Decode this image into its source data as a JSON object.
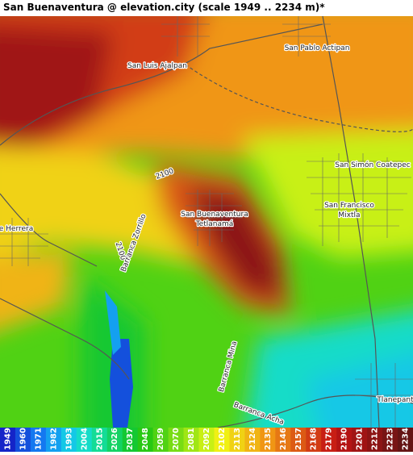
{
  "title": "San Buenaventura @ elevation.city (scale 1949 .. 2234 m)*",
  "places": [
    {
      "lines": [
        "San Luis Ajalpan"
      ]
    },
    {
      "lines": [
        "San Pablo Actipan"
      ]
    },
    {
      "lines": [
        "San Simón Coatepec"
      ]
    },
    {
      "lines": [
        "San Francisco",
        "Mixtla"
      ]
    },
    {
      "lines": [
        "San Buenaventura",
        "Tetlanamá"
      ]
    },
    {
      "lines": [
        "e Herrera"
      ]
    },
    {
      "lines": [
        "Tlanepant"
      ]
    },
    {
      "lines": [
        "2100"
      ]
    },
    {
      "lines": [
        "2100"
      ]
    },
    {
      "lines": [
        "Barranca Zorrillo"
      ]
    },
    {
      "lines": [
        "Barranca Mina"
      ]
    },
    {
      "lines": [
        "Barranca Acha"
      ]
    }
  ],
  "legend": {
    "values": [
      1949,
      1960,
      1971,
      1982,
      1993,
      2004,
      2015,
      2026,
      2037,
      2048,
      2059,
      2070,
      2081,
      2092,
      2102,
      2113,
      2124,
      2135,
      2146,
      2157,
      2168,
      2179,
      2190,
      2201,
      2212,
      2223,
      2234
    ],
    "colors": [
      "#1424c8",
      "#1450dc",
      "#1478f0",
      "#14a0f0",
      "#14c8e6",
      "#14dcc8",
      "#14dc96",
      "#14d264",
      "#14c832",
      "#28c814",
      "#50d214",
      "#78dc14",
      "#a0e614",
      "#c8f014",
      "#f0f014",
      "#f0d214",
      "#f0b414",
      "#f09614",
      "#e67814",
      "#dc5a14",
      "#d23c14",
      "#c81e14",
      "#b41414",
      "#a01414",
      "#8c1414",
      "#781414",
      "#641414"
    ]
  }
}
